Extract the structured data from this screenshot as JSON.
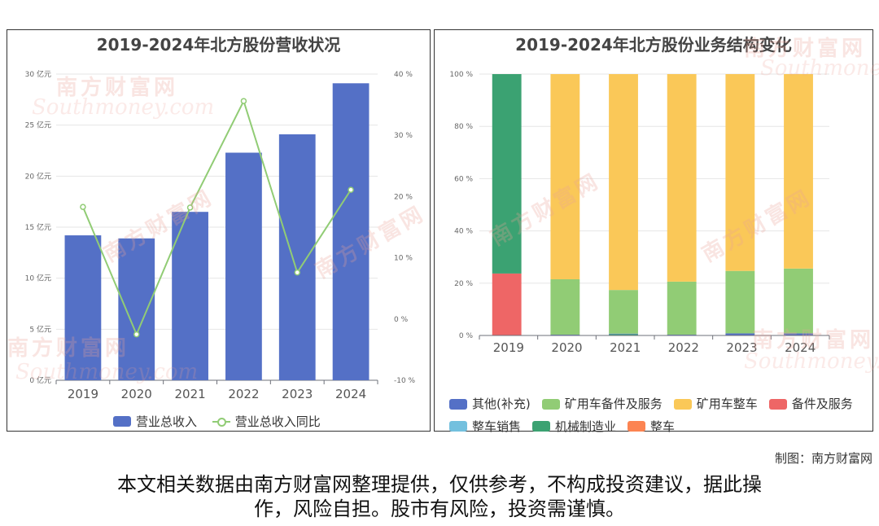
{
  "chart_data": [
    {
      "type": "bar",
      "title": "2019-2024年北方股份营收状况",
      "categories": [
        "2019",
        "2020",
        "2021",
        "2022",
        "2023",
        "2024"
      ],
      "y_left": {
        "ticks": [
          "0 亿元",
          "5 亿元",
          "10 亿元",
          "15 亿元",
          "20 亿元",
          "25 亿元",
          "30 亿元"
        ],
        "ylim": [
          0,
          30
        ]
      },
      "y_right": {
        "ticks": [
          "-10 %",
          "0 %",
          "10 %",
          "20 %",
          "30 %",
          "40 %"
        ],
        "ylim": [
          -10,
          40
        ]
      },
      "series": [
        {
          "name": "营业总收入",
          "kind": "bar",
          "axis": "left",
          "color": "#5470c6",
          "values": [
            14.2,
            13.9,
            16.5,
            22.3,
            24.1,
            29.1
          ]
        },
        {
          "name": "营业总收入同比",
          "kind": "line",
          "axis": "right",
          "color": "#91cc75",
          "values": [
            18.3,
            -2.5,
            18.2,
            35.6,
            7.6,
            21.1
          ]
        }
      ],
      "grid": true,
      "legend": "bottom"
    },
    {
      "type": "bar",
      "stacked": true,
      "title": "2019-2024年北方股份业务结构变化",
      "categories": [
        "2019",
        "2020",
        "2021",
        "2022",
        "2023",
        "2024"
      ],
      "y": {
        "ticks": [
          "0 %",
          "20 %",
          "40 %",
          "60 %",
          "80 %",
          "100 %"
        ],
        "ylim": [
          0,
          100
        ]
      },
      "series": [
        {
          "name": "其他(补充)",
          "color": "#5470c6",
          "values": [
            0,
            0.3,
            0.2,
            0.3,
            0.8,
            0.8
          ]
        },
        {
          "name": "矿用车备件及服务",
          "color": "#91cc75",
          "values": [
            0,
            21.2,
            16.7,
            20.3,
            23.9,
            24.8
          ]
        },
        {
          "name": "矿用车整车",
          "color": "#fac858",
          "values": [
            0,
            78.5,
            82.6,
            79.4,
            75.3,
            74.4
          ]
        },
        {
          "name": "备件及服务",
          "color": "#ee6666",
          "values": [
            23.7,
            0,
            0,
            0,
            0,
            0
          ]
        },
        {
          "name": "整车销售",
          "color": "#73c0de",
          "values": [
            0,
            0,
            0,
            0,
            0,
            0
          ]
        },
        {
          "name": "机械制造业",
          "color": "#3ba272",
          "values": [
            76.3,
            0,
            0.5,
            0,
            0,
            0
          ]
        },
        {
          "name": "整车",
          "color": "#fc8452",
          "values": [
            0,
            0,
            0,
            0,
            0,
            0
          ]
        }
      ],
      "grid": true,
      "legend": "bottom"
    }
  ],
  "watermark": {
    "brand": "南方财富网",
    "domain": "Southmoney.com"
  },
  "footer": {
    "credit": "制图：南方财富网",
    "disclaimer_line1": "本文相关数据由南方财富网整理提供，仅供参考，不构成投资建议，据此操",
    "disclaimer_line2": "作，风险自担。股市有风险，投资需谨慎。"
  }
}
